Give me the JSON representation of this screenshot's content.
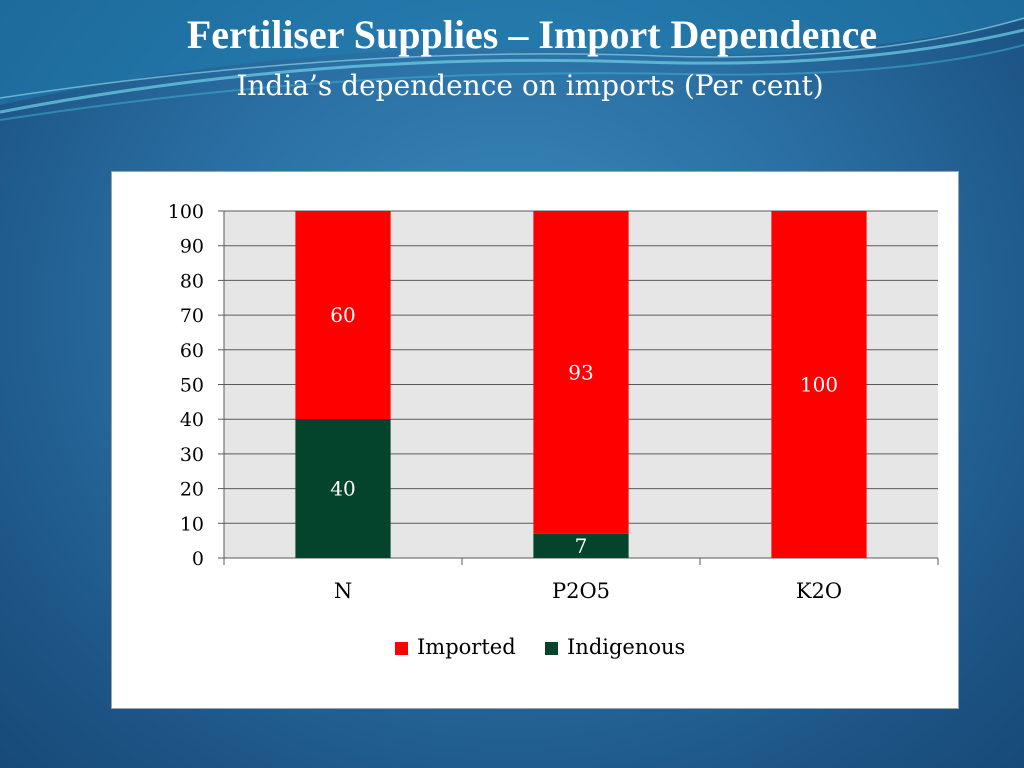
{
  "slide": {
    "title": "Fertiliser Supplies – Import Dependence",
    "subtitle": "India’s dependence on imports (Per cent)"
  },
  "colors": {
    "imported": "#ff0000",
    "indigenous": "#05442c",
    "plot_bg": "#e6e6e6",
    "background": "#2a6fa3"
  },
  "chart_data": {
    "type": "bar",
    "stacked": true,
    "categories": [
      "N",
      "P2O5",
      "K2O"
    ],
    "series": [
      {
        "name": "Indigenous",
        "values": [
          40,
          7,
          0
        ]
      },
      {
        "name": "Imported",
        "values": [
          60,
          93,
          100
        ]
      }
    ],
    "data_labels": {
      "Indigenous": [
        "40",
        "7",
        ""
      ],
      "Imported": [
        "60",
        "93",
        "100"
      ]
    },
    "y_ticks": [
      "0",
      "10",
      "20",
      "30",
      "40",
      "50",
      "60",
      "70",
      "80",
      "90",
      "100"
    ],
    "ylim": [
      0,
      100
    ],
    "grid": true,
    "legend": {
      "position": "bottom",
      "entries": [
        "Imported",
        "Indigenous"
      ]
    }
  }
}
